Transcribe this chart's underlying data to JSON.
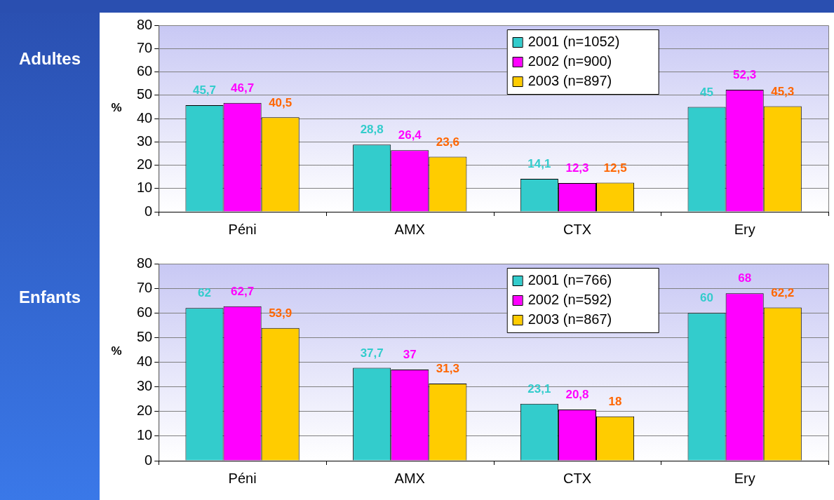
{
  "chart_data": [
    {
      "type": "bar",
      "title": "Adultes",
      "ylabel": "%",
      "categories": [
        "Péni",
        "AMX",
        "CTX",
        "Ery"
      ],
      "series": [
        {
          "name": "2001 (n=1052)",
          "color": "#33cccc",
          "values": [
            45.7,
            28.8,
            14.1,
            45
          ],
          "value_labels": [
            "45,7",
            "28,8",
            "14,1",
            "45"
          ]
        },
        {
          "name": "2002 (n=900)",
          "color": "#ff00ff",
          "values": [
            46.7,
            26.4,
            12.3,
            52.3
          ],
          "value_labels": [
            "46,7",
            "26,4",
            "12,3",
            "52,3"
          ]
        },
        {
          "name": "2003 (n=897)",
          "color": "#ffcc00",
          "values": [
            40.5,
            23.6,
            12.5,
            45.3
          ],
          "value_labels": [
            "40,5",
            "23,6",
            "12,5",
            "45,3"
          ]
        }
      ],
      "ylim": [
        0,
        80
      ],
      "yticks": [
        0,
        10,
        20,
        30,
        40,
        50,
        60,
        70,
        80
      ],
      "grid": "y",
      "legend": "top right"
    },
    {
      "type": "bar",
      "title": "Enfants",
      "ylabel": "%",
      "categories": [
        "Péni",
        "AMX",
        "CTX",
        "Ery"
      ],
      "series": [
        {
          "name": "2001 (n=766)",
          "color": "#33cccc",
          "values": [
            62,
            37.7,
            23.1,
            60
          ],
          "value_labels": [
            "62",
            "37,7",
            "23,1",
            "60"
          ]
        },
        {
          "name": "2002 (n=592)",
          "color": "#ff00ff",
          "values": [
            62.7,
            37,
            20.8,
            68
          ],
          "value_labels": [
            "62,7",
            "37",
            "20,8",
            "68"
          ]
        },
        {
          "name": "2003 (n=867)",
          "color": "#ffcc00",
          "values": [
            53.9,
            31.3,
            18,
            62.2
          ],
          "value_labels": [
            "53,9",
            "31,3",
            "18",
            "62,2"
          ]
        }
      ],
      "ylim": [
        0,
        80
      ],
      "yticks": [
        0,
        10,
        20,
        30,
        40,
        50,
        60,
        70,
        80
      ],
      "grid": "y",
      "legend": "top right"
    }
  ]
}
